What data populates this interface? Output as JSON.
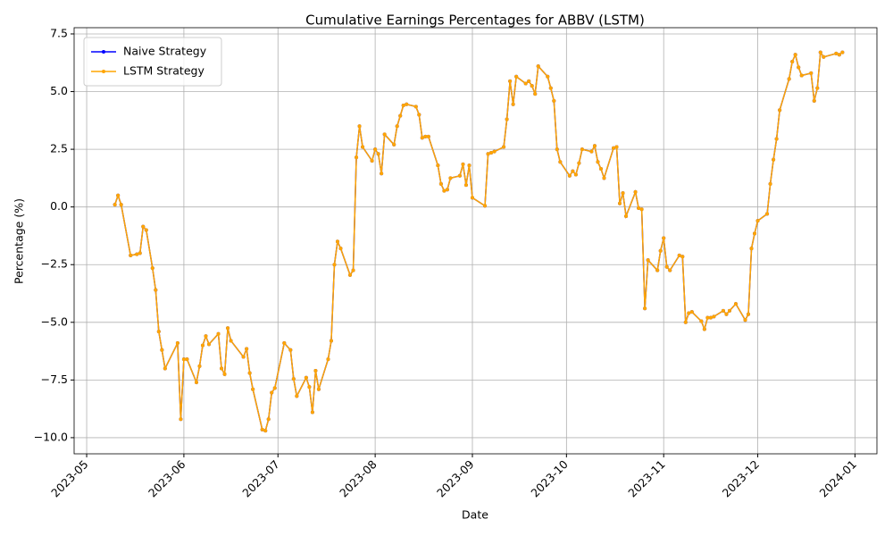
{
  "chart_data": {
    "type": "line",
    "title": "Cumulative Earnings Percentages for ABBV (LSTM)",
    "xlabel": "Date",
    "ylabel": "Percentage (%)",
    "x": [
      "2023-05-10",
      "2023-05-11",
      "2023-05-12",
      "2023-05-15",
      "2023-05-17",
      "2023-05-18",
      "2023-05-19",
      "2023-05-20",
      "2023-05-22",
      "2023-05-23",
      "2023-05-24",
      "2023-05-25",
      "2023-05-26",
      "2023-05-30",
      "2023-05-31",
      "2023-06-01",
      "2023-06-02",
      "2023-06-05",
      "2023-06-06",
      "2023-06-07",
      "2023-06-08",
      "2023-06-09",
      "2023-06-12",
      "2023-06-13",
      "2023-06-14",
      "2023-06-15",
      "2023-06-16",
      "2023-06-20",
      "2023-06-21",
      "2023-06-22",
      "2023-06-23",
      "2023-06-26",
      "2023-06-27",
      "2023-06-28",
      "2023-06-29",
      "2023-06-30",
      "2023-07-03",
      "2023-07-05",
      "2023-07-06",
      "2023-07-07",
      "2023-07-10",
      "2023-07-11",
      "2023-07-12",
      "2023-07-13",
      "2023-07-14",
      "2023-07-17",
      "2023-07-18",
      "2023-07-19",
      "2023-07-20",
      "2023-07-21",
      "2023-07-24",
      "2023-07-25",
      "2023-07-26",
      "2023-07-27",
      "2023-07-28",
      "2023-07-31",
      "2023-08-01",
      "2023-08-02",
      "2023-08-03",
      "2023-08-04",
      "2023-08-07",
      "2023-08-08",
      "2023-08-09",
      "2023-08-10",
      "2023-08-11",
      "2023-08-14",
      "2023-08-15",
      "2023-08-16",
      "2023-08-17",
      "2023-08-18",
      "2023-08-21",
      "2023-08-22",
      "2023-08-23",
      "2023-08-24",
      "2023-08-25",
      "2023-08-28",
      "2023-08-29",
      "2023-08-30",
      "2023-08-31",
      "2023-09-01",
      "2023-09-05",
      "2023-09-06",
      "2023-09-07",
      "2023-09-08",
      "2023-09-11",
      "2023-09-12",
      "2023-09-13",
      "2023-09-14",
      "2023-09-15",
      "2023-09-18",
      "2023-09-19",
      "2023-09-20",
      "2023-09-21",
      "2023-09-22",
      "2023-09-25",
      "2023-09-26",
      "2023-09-27",
      "2023-09-28",
      "2023-09-29",
      "2023-10-02",
      "2023-10-03",
      "2023-10-04",
      "2023-10-05",
      "2023-10-06",
      "2023-10-09",
      "2023-10-10",
      "2023-10-11",
      "2023-10-12",
      "2023-10-13",
      "2023-10-16",
      "2023-10-17",
      "2023-10-18",
      "2023-10-19",
      "2023-10-20",
      "2023-10-23",
      "2023-10-24",
      "2023-10-25",
      "2023-10-26",
      "2023-10-27",
      "2023-10-30",
      "2023-10-31",
      "2023-11-01",
      "2023-11-02",
      "2023-11-03",
      "2023-11-06",
      "2023-11-07",
      "2023-11-08",
      "2023-11-09",
      "2023-11-10",
      "2023-11-13",
      "2023-11-14",
      "2023-11-15",
      "2023-11-16",
      "2023-11-17",
      "2023-11-20",
      "2023-11-21",
      "2023-11-22",
      "2023-11-24",
      "2023-11-27",
      "2023-11-28",
      "2023-11-29",
      "2023-11-30",
      "2023-12-01",
      "2023-12-04",
      "2023-12-05",
      "2023-12-06",
      "2023-12-07",
      "2023-12-08",
      "2023-12-11",
      "2023-12-12",
      "2023-12-13",
      "2023-12-14",
      "2023-12-15",
      "2023-12-18",
      "2023-12-19",
      "2023-12-20",
      "2023-12-21",
      "2023-12-22",
      "2023-12-26",
      "2023-12-27",
      "2023-12-28"
    ],
    "series": [
      {
        "name": "Naive Strategy",
        "color": "#0000ff",
        "values": [
          0.1,
          0.5,
          0.1,
          -2.1,
          -2.05,
          -2.0,
          -0.85,
          -1.0,
          -2.65,
          -3.6,
          -5.4,
          -6.2,
          -7.0,
          -5.9,
          -9.2,
          -6.6,
          -6.6,
          -7.6,
          -6.9,
          -6.0,
          -5.6,
          -5.95,
          -5.5,
          -7.0,
          -7.25,
          -5.25,
          -5.8,
          -6.5,
          -6.15,
          -7.2,
          -7.9,
          -9.65,
          -9.7,
          -9.2,
          -8.05,
          -7.85,
          -5.9,
          -6.2,
          -7.45,
          -8.2,
          -7.4,
          -7.8,
          -8.9,
          -7.1,
          -7.9,
          -6.6,
          -5.8,
          -2.5,
          -1.5,
          -1.8,
          -2.95,
          -2.75,
          2.15,
          3.5,
          2.6,
          2.0,
          2.5,
          2.3,
          1.45,
          3.15,
          2.7,
          3.5,
          3.95,
          4.4,
          4.45,
          4.35,
          4.0,
          3.0,
          3.05,
          3.05,
          1.8,
          1.0,
          0.7,
          0.75,
          1.25,
          1.35,
          1.85,
          0.95,
          1.8,
          0.4,
          0.05,
          2.3,
          2.35,
          2.4,
          2.6,
          3.8,
          5.45,
          4.45,
          5.65,
          5.35,
          5.45,
          5.25,
          4.9,
          6.1,
          5.65,
          5.15,
          4.6,
          2.5,
          1.95,
          1.35,
          1.55,
          1.4,
          1.9,
          2.5,
          2.4,
          2.65,
          1.95,
          1.65,
          1.25,
          2.55,
          2.6,
          0.15,
          0.6,
          -0.4,
          0.65,
          -0.05,
          -0.1,
          -4.4,
          -2.3,
          -2.75,
          -1.9,
          -1.35,
          -2.6,
          -2.75,
          -2.1,
          -2.15,
          -5.0,
          -4.6,
          -4.55,
          -4.95,
          -5.3,
          -4.8,
          -4.8,
          -4.75,
          -4.5,
          -4.65,
          -4.5,
          -4.2,
          -4.9,
          -4.65,
          -1.8,
          -1.15,
          -0.6,
          -0.3,
          1.0,
          2.05,
          2.95,
          4.2,
          5.55,
          6.3,
          6.6,
          6.05,
          5.7,
          5.8,
          4.6,
          5.15,
          6.7,
          6.5,
          6.65,
          6.6,
          6.7
        ]
      },
      {
        "name": "LSTM Strategy",
        "color": "#ffa500",
        "values": [
          0.1,
          0.5,
          0.1,
          -2.1,
          -2.05,
          -2.0,
          -0.85,
          -1.0,
          -2.65,
          -3.6,
          -5.4,
          -6.2,
          -7.0,
          -5.9,
          -9.2,
          -6.6,
          -6.6,
          -7.6,
          -6.9,
          -6.0,
          -5.6,
          -5.95,
          -5.5,
          -7.0,
          -7.25,
          -5.25,
          -5.8,
          -6.5,
          -6.15,
          -7.2,
          -7.9,
          -9.65,
          -9.7,
          -9.2,
          -8.05,
          -7.85,
          -5.9,
          -6.2,
          -7.45,
          -8.2,
          -7.4,
          -7.8,
          -8.9,
          -7.1,
          -7.9,
          -6.6,
          -5.8,
          -2.5,
          -1.5,
          -1.8,
          -2.95,
          -2.75,
          2.15,
          3.5,
          2.6,
          2.0,
          2.5,
          2.3,
          1.45,
          3.15,
          2.7,
          3.5,
          3.95,
          4.4,
          4.45,
          4.35,
          4.0,
          3.0,
          3.05,
          3.05,
          1.8,
          1.0,
          0.7,
          0.75,
          1.25,
          1.35,
          1.85,
          0.95,
          1.8,
          0.4,
          0.05,
          2.3,
          2.35,
          2.4,
          2.6,
          3.8,
          5.45,
          4.45,
          5.65,
          5.35,
          5.45,
          5.25,
          4.9,
          6.1,
          5.65,
          5.15,
          4.6,
          2.5,
          1.95,
          1.35,
          1.55,
          1.4,
          1.9,
          2.5,
          2.4,
          2.65,
          1.95,
          1.65,
          1.25,
          2.55,
          2.6,
          0.15,
          0.6,
          -0.4,
          0.65,
          -0.05,
          -0.1,
          -4.4,
          -2.3,
          -2.75,
          -1.9,
          -1.35,
          -2.6,
          -2.75,
          -2.1,
          -2.15,
          -5.0,
          -4.6,
          -4.55,
          -4.95,
          -5.3,
          -4.8,
          -4.8,
          -4.75,
          -4.5,
          -4.65,
          -4.5,
          -4.2,
          -4.9,
          -4.65,
          -1.8,
          -1.15,
          -0.6,
          -0.3,
          1.0,
          2.05,
          2.95,
          4.2,
          5.55,
          6.3,
          6.6,
          6.05,
          5.7,
          5.8,
          4.6,
          5.15,
          6.7,
          6.5,
          6.65,
          6.6,
          6.7
        ]
      }
    ],
    "xlim": [
      "2023-04-27",
      "2024-01-08"
    ],
    "xticks": [
      {
        "value": "2023-05-01",
        "label": "2023-05"
      },
      {
        "value": "2023-06-01",
        "label": "2023-06"
      },
      {
        "value": "2023-07-01",
        "label": "2023-07"
      },
      {
        "value": "2023-08-01",
        "label": "2023-08"
      },
      {
        "value": "2023-09-01",
        "label": "2023-09"
      },
      {
        "value": "2023-10-01",
        "label": "2023-10"
      },
      {
        "value": "2023-11-01",
        "label": "2023-11"
      },
      {
        "value": "2023-12-01",
        "label": "2023-12"
      },
      {
        "value": "2024-01-01",
        "label": "2024-01"
      }
    ],
    "ylim": [
      -10.7,
      7.77
    ],
    "yticks": [
      {
        "value": -10,
        "label": "−10.0"
      },
      {
        "value": -7.5,
        "label": "−7.5"
      },
      {
        "value": -5,
        "label": "−5.0"
      },
      {
        "value": -2.5,
        "label": "−2.5"
      },
      {
        "value": 0,
        "label": "0.0"
      },
      {
        "value": 2.5,
        "label": "2.5"
      },
      {
        "value": 5,
        "label": "5.0"
      },
      {
        "value": 7.5,
        "label": "7.5"
      }
    ],
    "grid": true,
    "legend": "upper left"
  }
}
